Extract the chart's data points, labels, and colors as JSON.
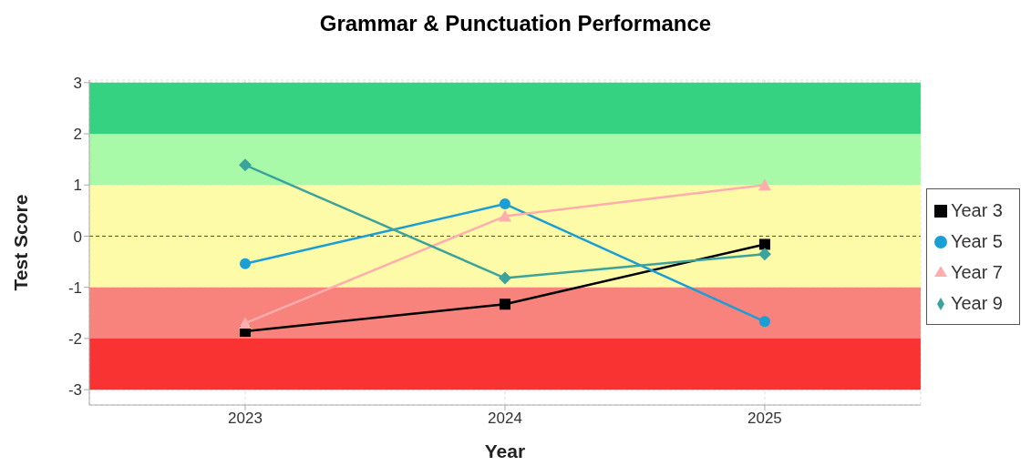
{
  "chart_data": {
    "type": "line",
    "title": "Grammar & Punctuation Performance",
    "xlabel": "Year",
    "ylabel": "Test Score",
    "categories": [
      "2023",
      "2024",
      "2025"
    ],
    "series": [
      {
        "name": "Year 3",
        "color": "#000000",
        "marker": "square",
        "values": [
          -1.86,
          -1.33,
          -0.16
        ]
      },
      {
        "name": "Year 5",
        "color": "#1a9ed6",
        "marker": "circle",
        "values": [
          -0.54,
          0.63,
          -1.67
        ]
      },
      {
        "name": "Year 7",
        "color": "#ffadad",
        "marker": "triangle",
        "values": [
          -1.7,
          0.39,
          1.0
        ]
      },
      {
        "name": "Year 9",
        "color": "#3aa39c",
        "marker": "diamond",
        "values": [
          1.39,
          -0.82,
          -0.35
        ]
      }
    ],
    "ylim": [
      -3.3,
      3.05
    ],
    "yticks": [
      -3,
      -2,
      -1,
      0,
      1,
      2,
      3
    ],
    "bands": [
      {
        "axis": "y",
        "from": 2,
        "to": 3,
        "color": "#35d282"
      },
      {
        "axis": "y",
        "from": 1,
        "to": 2,
        "color": "#a9faa8"
      },
      {
        "axis": "y",
        "from": -1,
        "to": 1,
        "color": "#fdfaa8"
      },
      {
        "axis": "y",
        "from": -2,
        "to": -1,
        "color": "#f8827c"
      },
      {
        "axis": "y",
        "from": -3,
        "to": -2,
        "color": "#f93232"
      }
    ],
    "ref_lines": [
      {
        "axis": "y",
        "value": 0,
        "color": "#3344bb",
        "line_style": "dashed"
      }
    ],
    "grid": true,
    "legend": "right",
    "line_style": "solid"
  }
}
